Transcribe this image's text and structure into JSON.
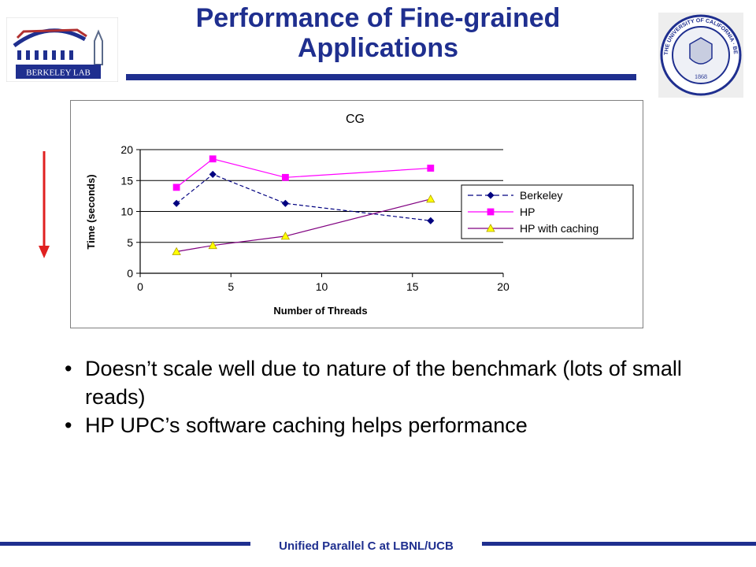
{
  "slide": {
    "title_line1": "Performance of Fine-grained",
    "title_line2": "Applications",
    "lab_logo_text": "BERKELEY LAB",
    "seal_text": "THE UNIVERSITY OF CALIFORNIA · BERKELEY",
    "seal_year": "1868",
    "bullets": [
      "Doesn’t scale well due to nature of the benchmark (lots of small reads)",
      "HP UPC’s software caching helps performance"
    ],
    "footer": "Unified Parallel C at LBNL/UCB",
    "colors": {
      "accent": "#1f2f8f",
      "arrow": "#e02020"
    }
  },
  "chart_data": {
    "type": "line",
    "title": "CG",
    "xlabel": "Number of Threads",
    "ylabel": "Time (seconds)",
    "xlim": [
      0,
      20
    ],
    "ylim": [
      0,
      20
    ],
    "xticks": [
      0,
      5,
      10,
      15,
      20
    ],
    "yticks": [
      0,
      5,
      10,
      15,
      20
    ],
    "grid": "horizontal",
    "legend": "right",
    "series": [
      {
        "name": "Berkeley",
        "color": "#000080",
        "marker": "diamond",
        "dash": true,
        "x": [
          2,
          4,
          8,
          16
        ],
        "values": [
          11.3,
          16,
          11.3,
          8.5
        ]
      },
      {
        "name": "HP",
        "color": "#ff00ff",
        "marker": "square",
        "dash": false,
        "x": [
          2,
          4,
          8,
          16
        ],
        "values": [
          13.9,
          18.5,
          15.5,
          17
        ]
      },
      {
        "name": "HP with caching",
        "color": "#800080",
        "markerColor": "#ffff00",
        "marker": "triangle",
        "dash": false,
        "x": [
          2,
          4,
          8,
          16
        ],
        "values": [
          3.5,
          4.5,
          6,
          12
        ]
      }
    ]
  }
}
